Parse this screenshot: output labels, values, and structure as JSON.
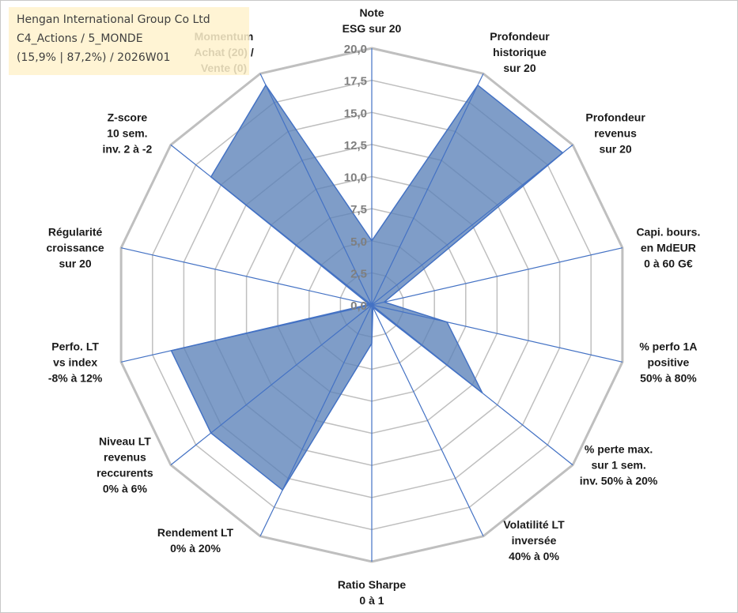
{
  "chart_data": {
    "type": "radar",
    "title_lines": [
      "Hengan International Group Co Ltd",
      "C4_Actions / 5_MONDE",
      "(15,9% | 87,2%) / 2026W01"
    ],
    "rmin": 0,
    "rmax": 20,
    "ticks": [
      "0,0",
      "2,5",
      "5,0",
      "7,5",
      "10,0",
      "12,5",
      "15,0",
      "17,5",
      "20,0"
    ],
    "axes": [
      {
        "label": [
          "Note",
          "ESG sur 20"
        ],
        "value": 5.0
      },
      {
        "label": [
          "Profondeur",
          "historique",
          "sur 20"
        ],
        "value": 19.0
      },
      {
        "label": [
          "Profondeur",
          "revenus",
          "sur 20"
        ],
        "value": 19.0
      },
      {
        "label": [
          "Capi. bours.",
          "en MdEUR",
          "0 à 60 G€"
        ],
        "value": 1.0
      },
      {
        "label": [
          "% perfo 1A",
          "positive",
          "50% à 80%"
        ],
        "value": 6.0
      },
      {
        "label": [
          "% perte max.",
          "sur 1 sem.",
          "inv. 50% à 20%"
        ],
        "value": 11.0
      },
      {
        "label": [
          "Volatilité LT",
          "inversée",
          "40% à 0%"
        ],
        "value": 0.2
      },
      {
        "label": [
          "Ratio Sharpe",
          "0 à 1"
        ],
        "value": 3.0
      },
      {
        "label": [
          "Rendement LT",
          "0% à 20%"
        ],
        "value": 16.0
      },
      {
        "label": [
          "Niveau LT",
          "revenus",
          "reccurents",
          "0% à 6%"
        ],
        "value": 16.0
      },
      {
        "label": [
          "Perfo. LT",
          "vs index",
          "-8% à 12%"
        ],
        "value": 16.0
      },
      {
        "label": [
          "Régularité",
          "croissance",
          "sur 20"
        ],
        "value": 0.2
      },
      {
        "label": [
          "Z-score",
          "10 sem.",
          "inv. 2 à -2"
        ],
        "value": 16.0
      },
      {
        "label": [
          "Momentum",
          "Achat (20) /",
          "Vente (0)"
        ],
        "value": 19.0
      }
    ],
    "series": [
      {
        "name": "Hengan International Group Co Ltd"
      }
    ],
    "colors": {
      "fill": "#5b82b8",
      "series_line": "#4472c4",
      "grid": "#bfbfbf",
      "outer_ring": "#bfbfbf",
      "spoke": "#4472c4"
    }
  }
}
